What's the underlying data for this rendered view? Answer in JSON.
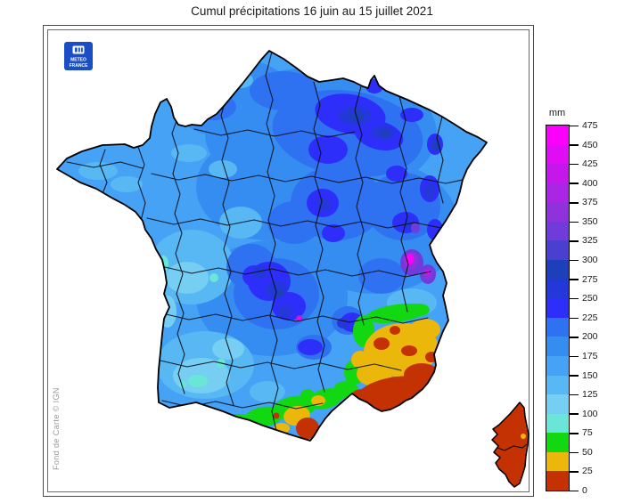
{
  "title": "Cumul précipitations 16 juin au 15 juillet 2021",
  "logo": {
    "line1": "METEO",
    "line2": "FRANCE",
    "color": "#1a4ec6"
  },
  "map": {
    "credit": "Fond de Carte © IGN"
  },
  "legend": {
    "unit": "mm",
    "tick_values": [
      475,
      450,
      425,
      400,
      375,
      350,
      325,
      300,
      275,
      250,
      225,
      200,
      175,
      150,
      125,
      100,
      75,
      50,
      25,
      0
    ],
    "bands_bottom_to_top": [
      {
        "from": 0,
        "to": 25,
        "color": "#c43102"
      },
      {
        "from": 25,
        "to": 50,
        "color": "#eab70a"
      },
      {
        "from": 50,
        "to": 75,
        "color": "#12d812"
      },
      {
        "from": 75,
        "to": 100,
        "color": "#69e6d6"
      },
      {
        "from": 100,
        "to": 125,
        "color": "#76cef2"
      },
      {
        "from": 125,
        "to": 150,
        "color": "#57b8f4"
      },
      {
        "from": 150,
        "to": 175,
        "color": "#45a2f5"
      },
      {
        "from": 175,
        "to": 200,
        "color": "#358df1"
      },
      {
        "from": 200,
        "to": 225,
        "color": "#2f72f1"
      },
      {
        "from": 225,
        "to": 250,
        "color": "#2e2efa"
      },
      {
        "from": 250,
        "to": 275,
        "color": "#2438da"
      },
      {
        "from": 275,
        "to": 300,
        "color": "#1d40ba"
      },
      {
        "from": 300,
        "to": 325,
        "color": "#4a3fd0"
      },
      {
        "from": 325,
        "to": 350,
        "color": "#6f3bda"
      },
      {
        "from": 350,
        "to": 375,
        "color": "#9032dc"
      },
      {
        "from": 375,
        "to": 400,
        "color": "#aa25e4"
      },
      {
        "from": 400,
        "to": 425,
        "color": "#c317ec"
      },
      {
        "from": 425,
        "to": 450,
        "color": "#e00cf4"
      },
      {
        "from": 450,
        "to": 475,
        "color": "#fb00fb"
      }
    ]
  }
}
